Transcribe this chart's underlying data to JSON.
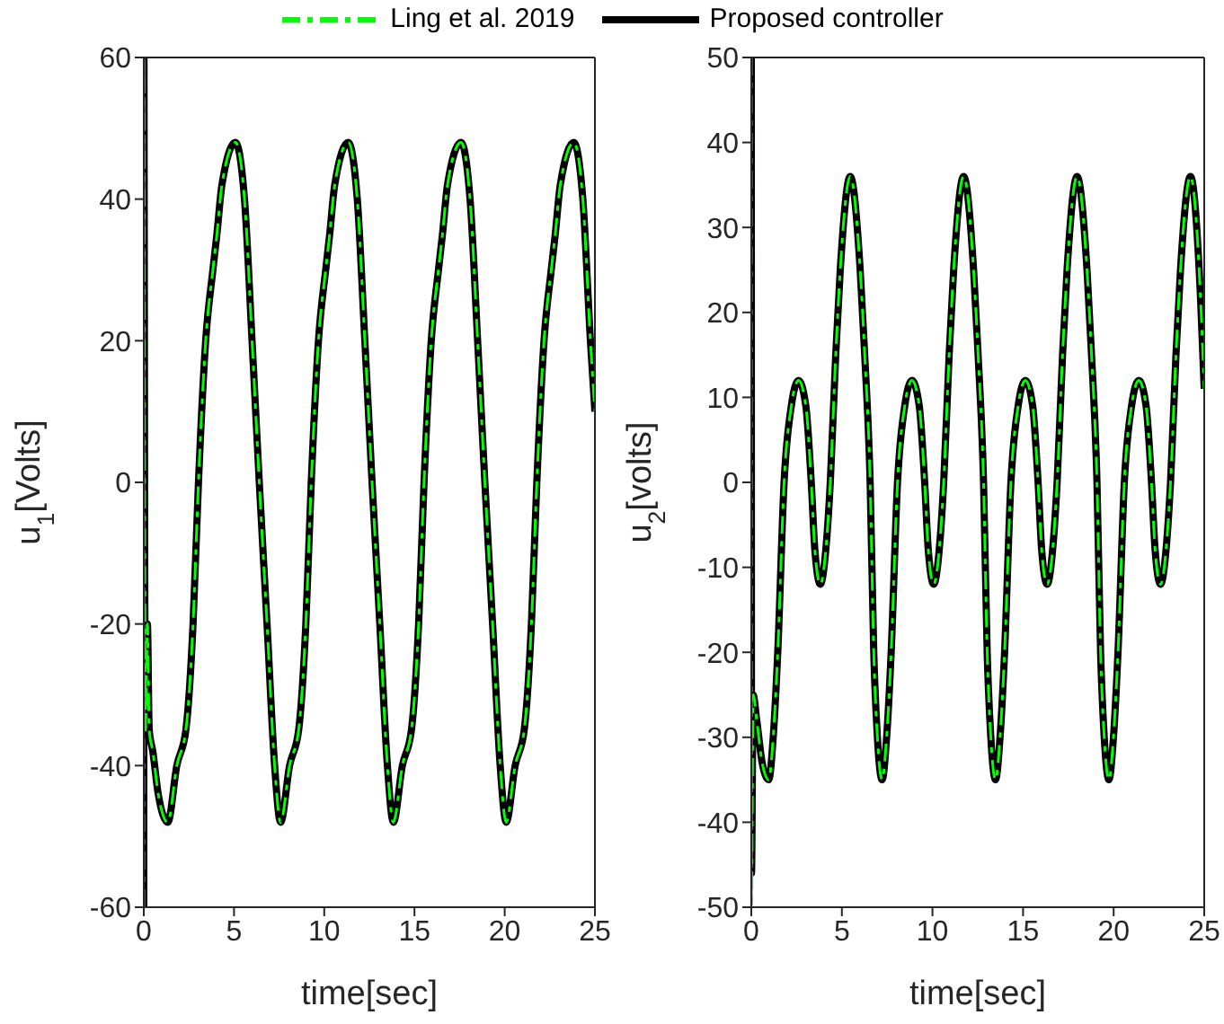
{
  "chart_data": [
    {
      "type": "line",
      "xlabel": "time[sec]",
      "ylabel": "u$_{1}$[Volts]",
      "xlim": [
        0,
        25
      ],
      "ylim": [
        -60,
        60
      ],
      "xticks": [
        0,
        5,
        10,
        15,
        20,
        25
      ],
      "yticks": [
        -60,
        -40,
        -20,
        0,
        20,
        40,
        60
      ],
      "legend": "top",
      "series": [
        {
          "name": "Ling et al. 2019",
          "color": "#00ff00",
          "line_style": "dashed",
          "x": [
            0,
            0.01,
            0.05,
            0.1,
            0.2,
            0.3,
            0.5,
            0.8,
            1.33,
            1.83,
            2.33,
            2.73,
            3.03,
            3.43,
            3.83,
            4.05,
            4.33,
            5.08,
            5.58,
            6.0,
            6.4,
            6.83,
            7.25,
            7.58,
            8.08,
            8.58,
            8.98,
            9.28,
            9.68,
            10.08,
            10.3,
            10.58,
            11.33,
            11.83,
            12.25,
            12.65,
            13.08,
            13.5,
            13.83,
            14.33,
            14.83,
            15.23,
            15.53,
            15.93,
            16.33,
            16.55,
            16.83,
            17.58,
            18.08,
            18.5,
            18.9,
            19.33,
            19.75,
            20.08,
            20.58,
            21.08,
            21.48,
            21.78,
            22.18,
            22.58,
            22.8,
            23.08,
            23.83,
            24.33,
            24.75,
            25
          ],
          "values": [
            -60,
            60,
            -10,
            -35,
            -20,
            -35,
            -38,
            -44,
            -48,
            -40,
            -35,
            -20,
            0,
            20,
            30,
            35,
            42,
            48,
            40,
            20,
            0,
            -20,
            -40,
            -48,
            -40,
            -35,
            -20,
            0,
            20,
            30,
            35,
            42,
            48,
            40,
            20,
            0,
            -20,
            -40,
            -48,
            -40,
            -35,
            -20,
            0,
            20,
            30,
            35,
            42,
            48,
            40,
            20,
            0,
            -20,
            -40,
            -48,
            -40,
            -35,
            -20,
            0,
            20,
            30,
            35,
            42,
            48,
            40,
            20,
            10
          ]
        },
        {
          "name": "Proposed controller",
          "color": "#000000",
          "line_style": "solid",
          "x": [
            0,
            0.01,
            0.05,
            0.1,
            0.2,
            0.3,
            0.5,
            0.8,
            1.33,
            1.83,
            2.33,
            2.73,
            3.03,
            3.43,
            3.83,
            4.05,
            4.33,
            5.08,
            5.58,
            6.0,
            6.4,
            6.83,
            7.25,
            7.58,
            8.08,
            8.58,
            8.98,
            9.28,
            9.68,
            10.08,
            10.3,
            10.58,
            11.33,
            11.83,
            12.25,
            12.65,
            13.08,
            13.5,
            13.83,
            14.33,
            14.83,
            15.23,
            15.53,
            15.93,
            16.33,
            16.55,
            16.83,
            17.58,
            18.08,
            18.5,
            18.9,
            19.33,
            19.75,
            20.08,
            20.58,
            21.08,
            21.48,
            21.78,
            22.18,
            22.58,
            22.8,
            23.08,
            23.83,
            24.33,
            24.75,
            25
          ],
          "values": [
            -60,
            60,
            -10,
            -35,
            -20,
            -35,
            -38,
            -44,
            -48,
            -40,
            -35,
            -20,
            0,
            20,
            30,
            35,
            42,
            48,
            40,
            20,
            0,
            -20,
            -40,
            -48,
            -40,
            -35,
            -20,
            0,
            20,
            30,
            35,
            42,
            48,
            40,
            20,
            0,
            -20,
            -40,
            -48,
            -40,
            -35,
            -20,
            0,
            20,
            30,
            35,
            42,
            48,
            40,
            20,
            0,
            -20,
            -40,
            -48,
            -40,
            -35,
            -20,
            0,
            20,
            30,
            35,
            42,
            48,
            40,
            20,
            10
          ]
        }
      ]
    },
    {
      "type": "line",
      "xlabel": "time[sec]",
      "ylabel": "u$_{2}$[volts]",
      "xlim": [
        0,
        25
      ],
      "ylim": [
        -50,
        50
      ],
      "xticks": [
        0,
        5,
        10,
        15,
        20,
        25
      ],
      "yticks": [
        -50,
        -40,
        -30,
        -20,
        -10,
        0,
        10,
        20,
        30,
        40,
        50
      ],
      "series": [
        {
          "color": "#00ff00",
          "line_style": "dashed",
          "x": [
            0,
            0.01,
            0.1,
            0.3,
            0.6,
            0.96,
            1.21,
            1.46,
            1.81,
            2.21,
            2.61,
            3.01,
            3.31,
            3.51,
            3.81,
            4.11,
            4.36,
            4.66,
            4.91,
            5.46,
            6.01,
            6.26,
            6.56,
            6.76,
            6.96,
            7.22,
            7.47,
            7.72,
            8.07,
            8.47,
            8.87,
            9.27,
            9.57,
            9.77,
            10.07,
            10.37,
            10.62,
            10.92,
            11.17,
            11.72,
            12.27,
            12.52,
            12.82,
            13.02,
            13.22,
            13.48,
            13.73,
            13.98,
            14.33,
            14.73,
            15.13,
            15.53,
            15.83,
            16.03,
            16.33,
            16.63,
            16.88,
            17.18,
            17.43,
            17.98,
            18.53,
            18.78,
            19.08,
            19.28,
            19.48,
            19.74,
            19.99,
            20.24,
            20.59,
            20.99,
            21.39,
            21.79,
            22.09,
            22.29,
            22.59,
            22.89,
            23.14,
            23.44,
            23.69,
            24.24,
            24.79,
            25
          ],
          "values": [
            50,
            -50,
            -25,
            -28,
            -33,
            -35,
            -30,
            -20,
            0,
            9,
            12,
            9,
            0,
            -8,
            -12,
            -8,
            0,
            15,
            25,
            36,
            25,
            15,
            0,
            -20,
            -30,
            -35,
            -30,
            -20,
            0,
            9,
            12,
            9,
            0,
            -8,
            -12,
            -8,
            0,
            15,
            25,
            36,
            25,
            15,
            0,
            -20,
            -30,
            -35,
            -30,
            -20,
            0,
            9,
            12,
            9,
            0,
            -8,
            -12,
            -8,
            0,
            15,
            25,
            36,
            25,
            15,
            0,
            -20,
            -30,
            -35,
            -30,
            -20,
            0,
            9,
            12,
            9,
            0,
            -8,
            -12,
            -8,
            0,
            15,
            25,
            36,
            22,
            11
          ]
        },
        {
          "color": "#000000",
          "line_style": "solid",
          "x": [
            0,
            0.01,
            0.1,
            0.3,
            0.6,
            0.96,
            1.21,
            1.46,
            1.81,
            2.21,
            2.61,
            3.01,
            3.31,
            3.51,
            3.81,
            4.11,
            4.36,
            4.66,
            4.91,
            5.46,
            6.01,
            6.26,
            6.56,
            6.76,
            6.96,
            7.22,
            7.47,
            7.72,
            8.07,
            8.47,
            8.87,
            9.27,
            9.57,
            9.77,
            10.07,
            10.37,
            10.62,
            10.92,
            11.17,
            11.72,
            12.27,
            12.52,
            12.82,
            13.02,
            13.22,
            13.48,
            13.73,
            13.98,
            14.33,
            14.73,
            15.13,
            15.53,
            15.83,
            16.03,
            16.33,
            16.63,
            16.88,
            17.18,
            17.43,
            17.98,
            18.53,
            18.78,
            19.08,
            19.28,
            19.48,
            19.74,
            19.99,
            20.24,
            20.59,
            20.99,
            21.39,
            21.79,
            22.09,
            22.29,
            22.59,
            22.89,
            23.14,
            23.44,
            23.69,
            24.24,
            24.79,
            25
          ],
          "values": [
            50,
            -46,
            -25,
            -28,
            -33,
            -35,
            -30,
            -20,
            0,
            9,
            12,
            9,
            0,
            -8,
            -12,
            -8,
            0,
            15,
            25,
            36,
            25,
            15,
            0,
            -20,
            -30,
            -35,
            -30,
            -20,
            0,
            9,
            12,
            9,
            0,
            -8,
            -12,
            -8,
            0,
            15,
            25,
            36,
            25,
            15,
            0,
            -20,
            -30,
            -35,
            -30,
            -20,
            0,
            9,
            12,
            9,
            0,
            -8,
            -12,
            -8,
            0,
            15,
            25,
            36,
            25,
            15,
            0,
            -20,
            -30,
            -35,
            -30,
            -20,
            0,
            9,
            12,
            9,
            0,
            -8,
            -12,
            -8,
            0,
            15,
            25,
            36,
            22,
            11
          ]
        }
      ]
    }
  ]
}
